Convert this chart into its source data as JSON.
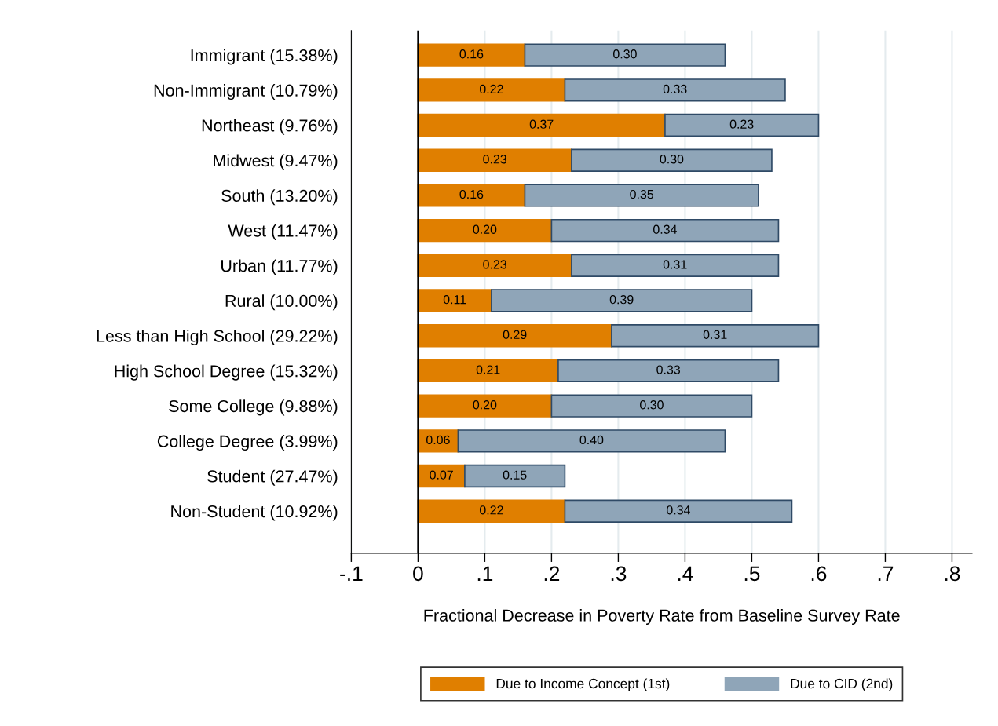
{
  "chart_data": {
    "type": "bar",
    "orientation": "horizontal",
    "stacked": true,
    "xlabel": "Fractional Decrease in Poverty Rate from Baseline Survey Rate",
    "categories": [
      "Immigrant (15.38%)",
      "Non-Immigrant (10.79%)",
      "Northeast (9.76%)",
      "Midwest (9.47%)",
      "South (13.20%)",
      "West (11.47%)",
      "Urban (11.77%)",
      "Rural (10.00%)",
      "Less than High School (29.22%)",
      "High School Degree (15.32%)",
      "Some College (9.88%)",
      "College Degree (3.99%)",
      "Student (27.47%)",
      "Non-Student (10.92%)"
    ],
    "series": [
      {
        "name": "Due to Income Concept (1st)",
        "color": "#e07f00",
        "values": [
          0.16,
          0.22,
          0.37,
          0.23,
          0.16,
          0.2,
          0.23,
          0.11,
          0.29,
          0.21,
          0.2,
          0.06,
          0.07,
          0.22
        ],
        "value_labels": [
          "0.16",
          "0.22",
          "0.37",
          "0.23",
          "0.16",
          "0.20",
          "0.23",
          "0.11",
          "0.29",
          "0.21",
          "0.20",
          "0.06",
          "0.07",
          "0.22"
        ]
      },
      {
        "name": "Due to CID (2nd)",
        "color": "#8fa5b8",
        "values": [
          0.3,
          0.33,
          0.23,
          0.3,
          0.35,
          0.34,
          0.31,
          0.39,
          0.31,
          0.33,
          0.3,
          0.4,
          0.15,
          0.34
        ],
        "value_labels": [
          "0.30",
          "0.33",
          "0.23",
          "0.30",
          "0.35",
          "0.34",
          "0.31",
          "0.39",
          "0.31",
          "0.33",
          "0.30",
          "0.40",
          "0.15",
          "0.34"
        ]
      }
    ],
    "xlim": [
      -0.1,
      0.83
    ],
    "xticks": [
      {
        "value": -0.1,
        "label": "-.1"
      },
      0,
      {
        "value": 0.1,
        "label": ".1"
      },
      {
        "value": 0.2,
        "label": ".2"
      },
      {
        "value": 0.3,
        "label": ".3"
      },
      {
        "value": 0.4,
        "label": ".4"
      },
      {
        "value": 0.5,
        "label": ".5"
      },
      {
        "value": 0.6,
        "label": ".6"
      },
      {
        "value": 0.7,
        "label": ".7"
      },
      {
        "value": 0.8,
        "label": ".8"
      }
    ],
    "ref_lines": [
      {
        "axis": "x",
        "value": 0,
        "color": "#000000"
      }
    ],
    "grid": "x",
    "legend": "bottom"
  }
}
